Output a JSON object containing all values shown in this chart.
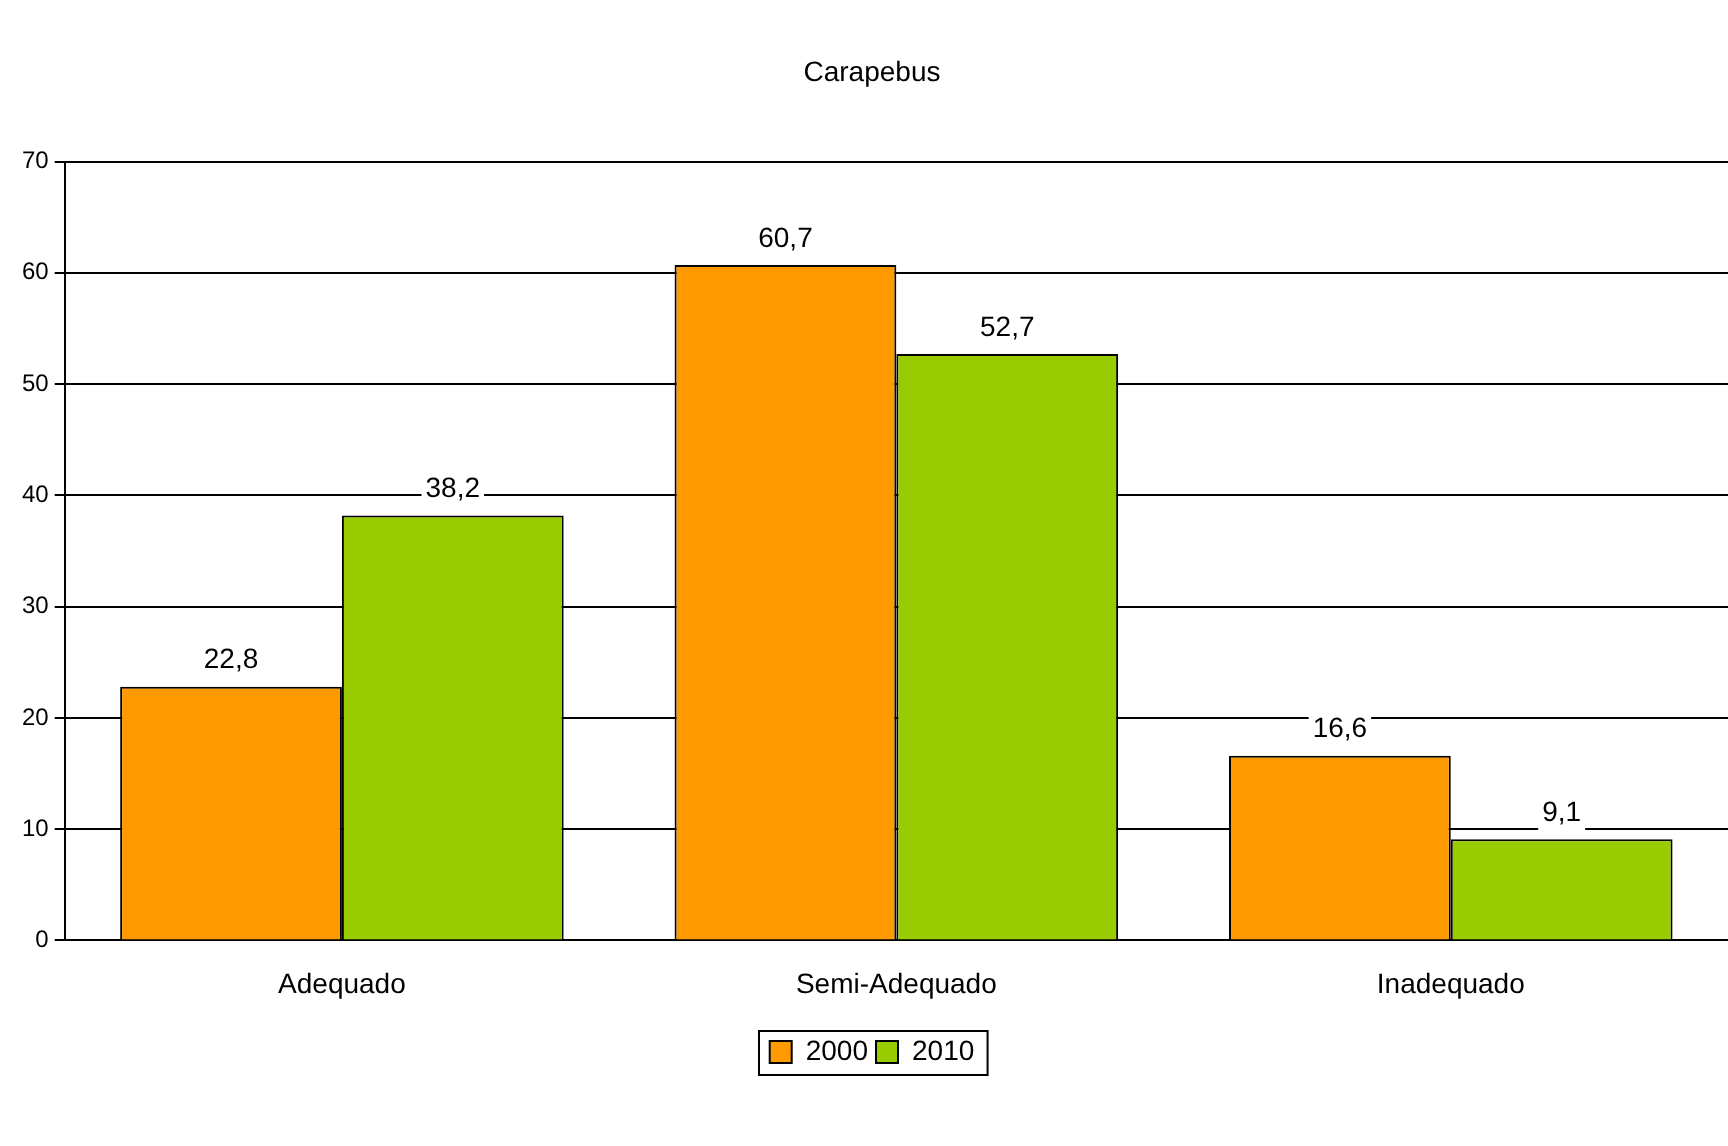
{
  "chart_data": {
    "type": "bar",
    "title": "Carapebus",
    "categories": [
      "Adequado",
      "Semi-Adequado",
      "Inadequado"
    ],
    "series": [
      {
        "name": "2000",
        "color": "#ff9900",
        "values": [
          22.8,
          60.7,
          16.6
        ],
        "value_labels": [
          "22,8",
          "60,7",
          "16,6"
        ]
      },
      {
        "name": "2010",
        "color": "#99cc00",
        "values": [
          38.2,
          52.7,
          9.1
        ],
        "value_labels": [
          "38,2",
          "52,7",
          "9,1"
        ]
      }
    ],
    "ylim": [
      0,
      70
    ],
    "yticks": [
      0,
      10,
      20,
      30,
      40,
      50,
      60,
      70
    ],
    "grid": "y",
    "legend": "bottom"
  }
}
